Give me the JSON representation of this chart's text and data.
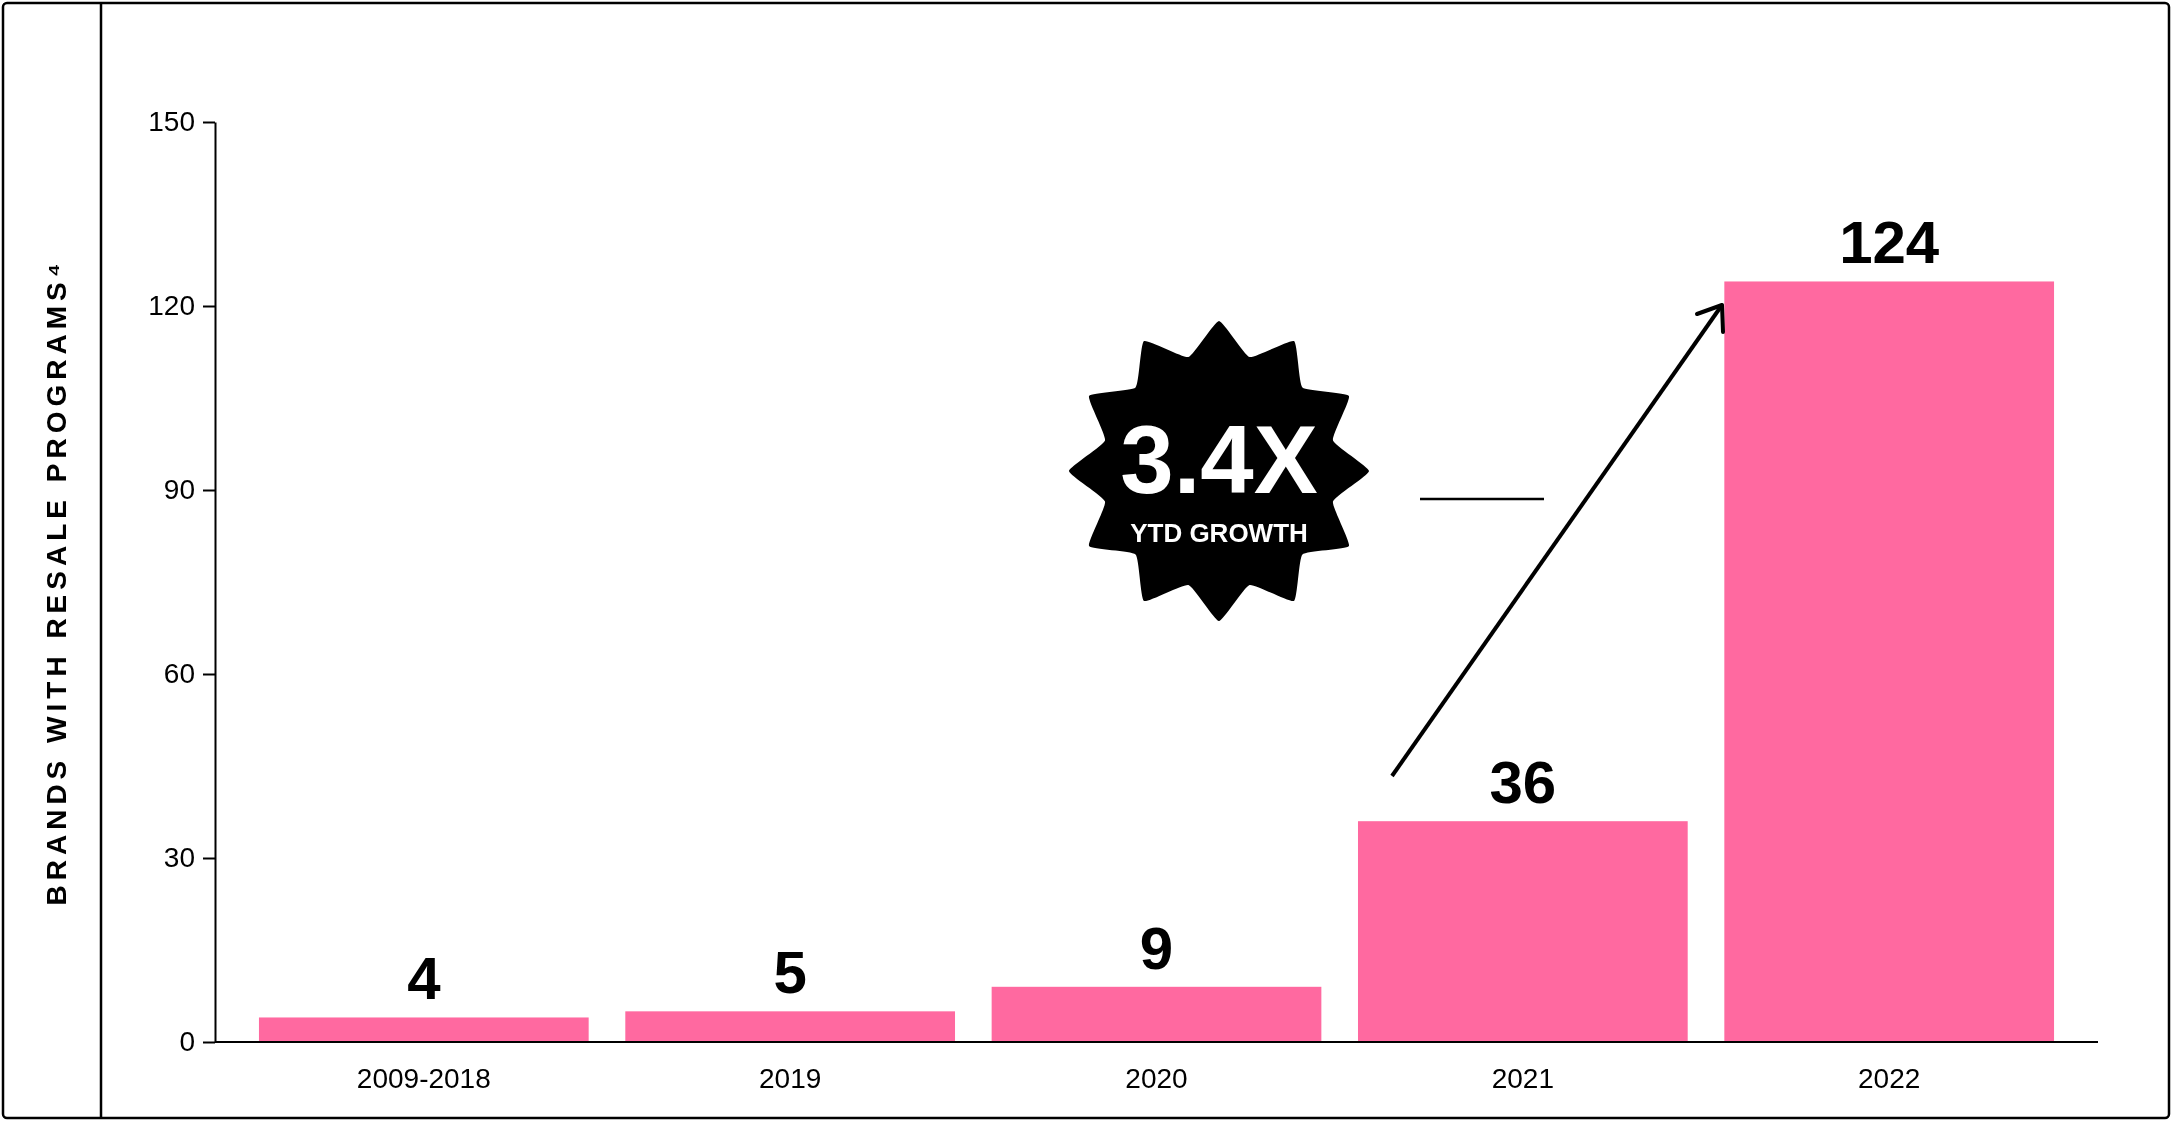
{
  "chart_data": {
    "type": "bar",
    "ylabel": "BRANDS WITH RESALE PROGRAMS⁴",
    "categories": [
      "2009-2018",
      "2019",
      "2020",
      "2021",
      "2022"
    ],
    "values": [
      4,
      5,
      9,
      36,
      124
    ],
    "color": "#ff69a0",
    "ylim": [
      0,
      150
    ],
    "yticks": [
      0,
      30,
      60,
      90,
      120,
      150
    ],
    "data_labels": true,
    "grid": false,
    "annotations": [
      "3.4X",
      "YTD GROWTH"
    ]
  }
}
